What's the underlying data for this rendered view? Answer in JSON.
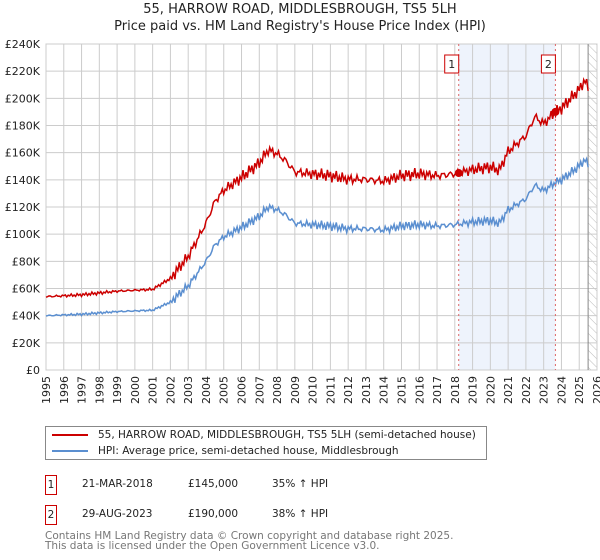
{
  "chart_data": {
    "type": "line",
    "title": "55, HARROW ROAD, MIDDLESBROUGH, TS5 5LH",
    "subtitle": "Price paid vs. HM Land Registry's House Price Index (HPI)",
    "xlim": [
      1995,
      2026
    ],
    "ylim": [
      0,
      240000
    ],
    "x_ticks": [
      "1995",
      "1996",
      "1997",
      "1998",
      "1999",
      "2000",
      "2001",
      "2002",
      "2003",
      "2004",
      "2005",
      "2006",
      "2007",
      "2008",
      "2009",
      "2010",
      "2011",
      "2012",
      "2013",
      "2014",
      "2015",
      "2016",
      "2017",
      "2018",
      "2019",
      "2020",
      "2021",
      "2022",
      "2023",
      "2024",
      "2025",
      "2026"
    ],
    "y_ticks": [
      "£0",
      "£20K",
      "£40K",
      "£60K",
      "£80K",
      "£100K",
      "£120K",
      "£140K",
      "£160K",
      "£180K",
      "£200K",
      "£220K",
      "£240K"
    ],
    "grid": true,
    "series": [
      {
        "name": "HPI: Average price, semi-detached house, Middlesbrough",
        "color": "#5b8fd0",
        "x": [
          1995,
          1996,
          1997,
          1998,
          1999,
          2000,
          2001,
          2002,
          2003,
          2004,
          2004.5,
          2005,
          2006,
          2007,
          2007.5,
          2008,
          2008.5,
          2009,
          2010,
          2011,
          2012,
          2013,
          2014,
          2015,
          2016,
          2017,
          2018,
          2019,
          2020,
          2020.5,
          2021,
          2022,
          2022.5,
          2023,
          2023.66,
          2024,
          2025,
          2025.3,
          2025.5
        ],
        "y": [
          40000,
          40500,
          41000,
          42000,
          43000,
          43500,
          44000,
          50000,
          62000,
          80000,
          92000,
          98000,
          105000,
          113000,
          120000,
          118000,
          114000,
          108000,
          107000,
          106000,
          104000,
          104000,
          103000,
          106000,
          107000,
          106000,
          107000,
          109000,
          110000,
          108000,
          118000,
          126000,
          136000,
          132000,
          138000,
          140000,
          150000,
          155000,
          151000
        ]
      },
      {
        "name": "55, HARROW ROAD, MIDDLESBROUGH, TS5 5LH (semi-detached house)",
        "color": "#cc0000"
      }
    ],
    "sales": [
      {
        "label": "1",
        "x": 2018.22,
        "price": 145000
      },
      {
        "label": "2",
        "x": 2023.66,
        "price": 190000
      }
    ],
    "shaded_range": [
      2018.22,
      2023.66
    ],
    "hatched_from": 2025.5,
    "legend_placement": "below"
  },
  "table": [
    {
      "num": "1",
      "date": "21-MAR-2018",
      "price": "£145,000",
      "hpi": "35% ↑ HPI"
    },
    {
      "num": "2",
      "date": "29-AUG-2023",
      "price": "£190,000",
      "hpi": "38% ↑ HPI"
    }
  ],
  "footer": {
    "line1": "Contains HM Land Registry data © Crown copyright and database right 2025.",
    "line2": "This data is licensed under the Open Government Licence v3.0."
  }
}
